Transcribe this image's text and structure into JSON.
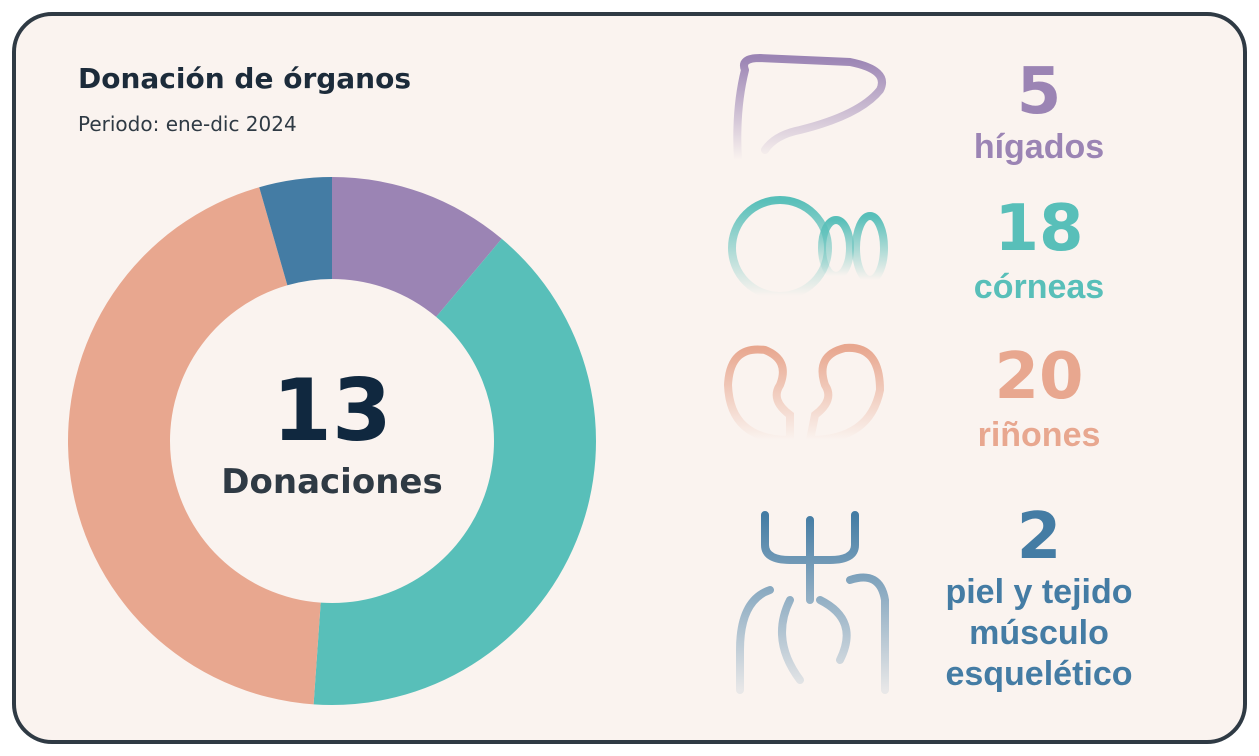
{
  "chart_data": {
    "type": "pie",
    "title": "Donación de órganos",
    "subtitle": "Periodo: ene-dic 2024",
    "center_value": 13,
    "center_label": "Donaciones",
    "categories": [
      "hígados",
      "córneas",
      "riñones",
      "piel y tejido músculo esquelético"
    ],
    "values": [
      5,
      18,
      20,
      2
    ],
    "colors": [
      "#9b84b4",
      "#58bfb9",
      "#e8a78f",
      "#447ca4"
    ]
  }
}
